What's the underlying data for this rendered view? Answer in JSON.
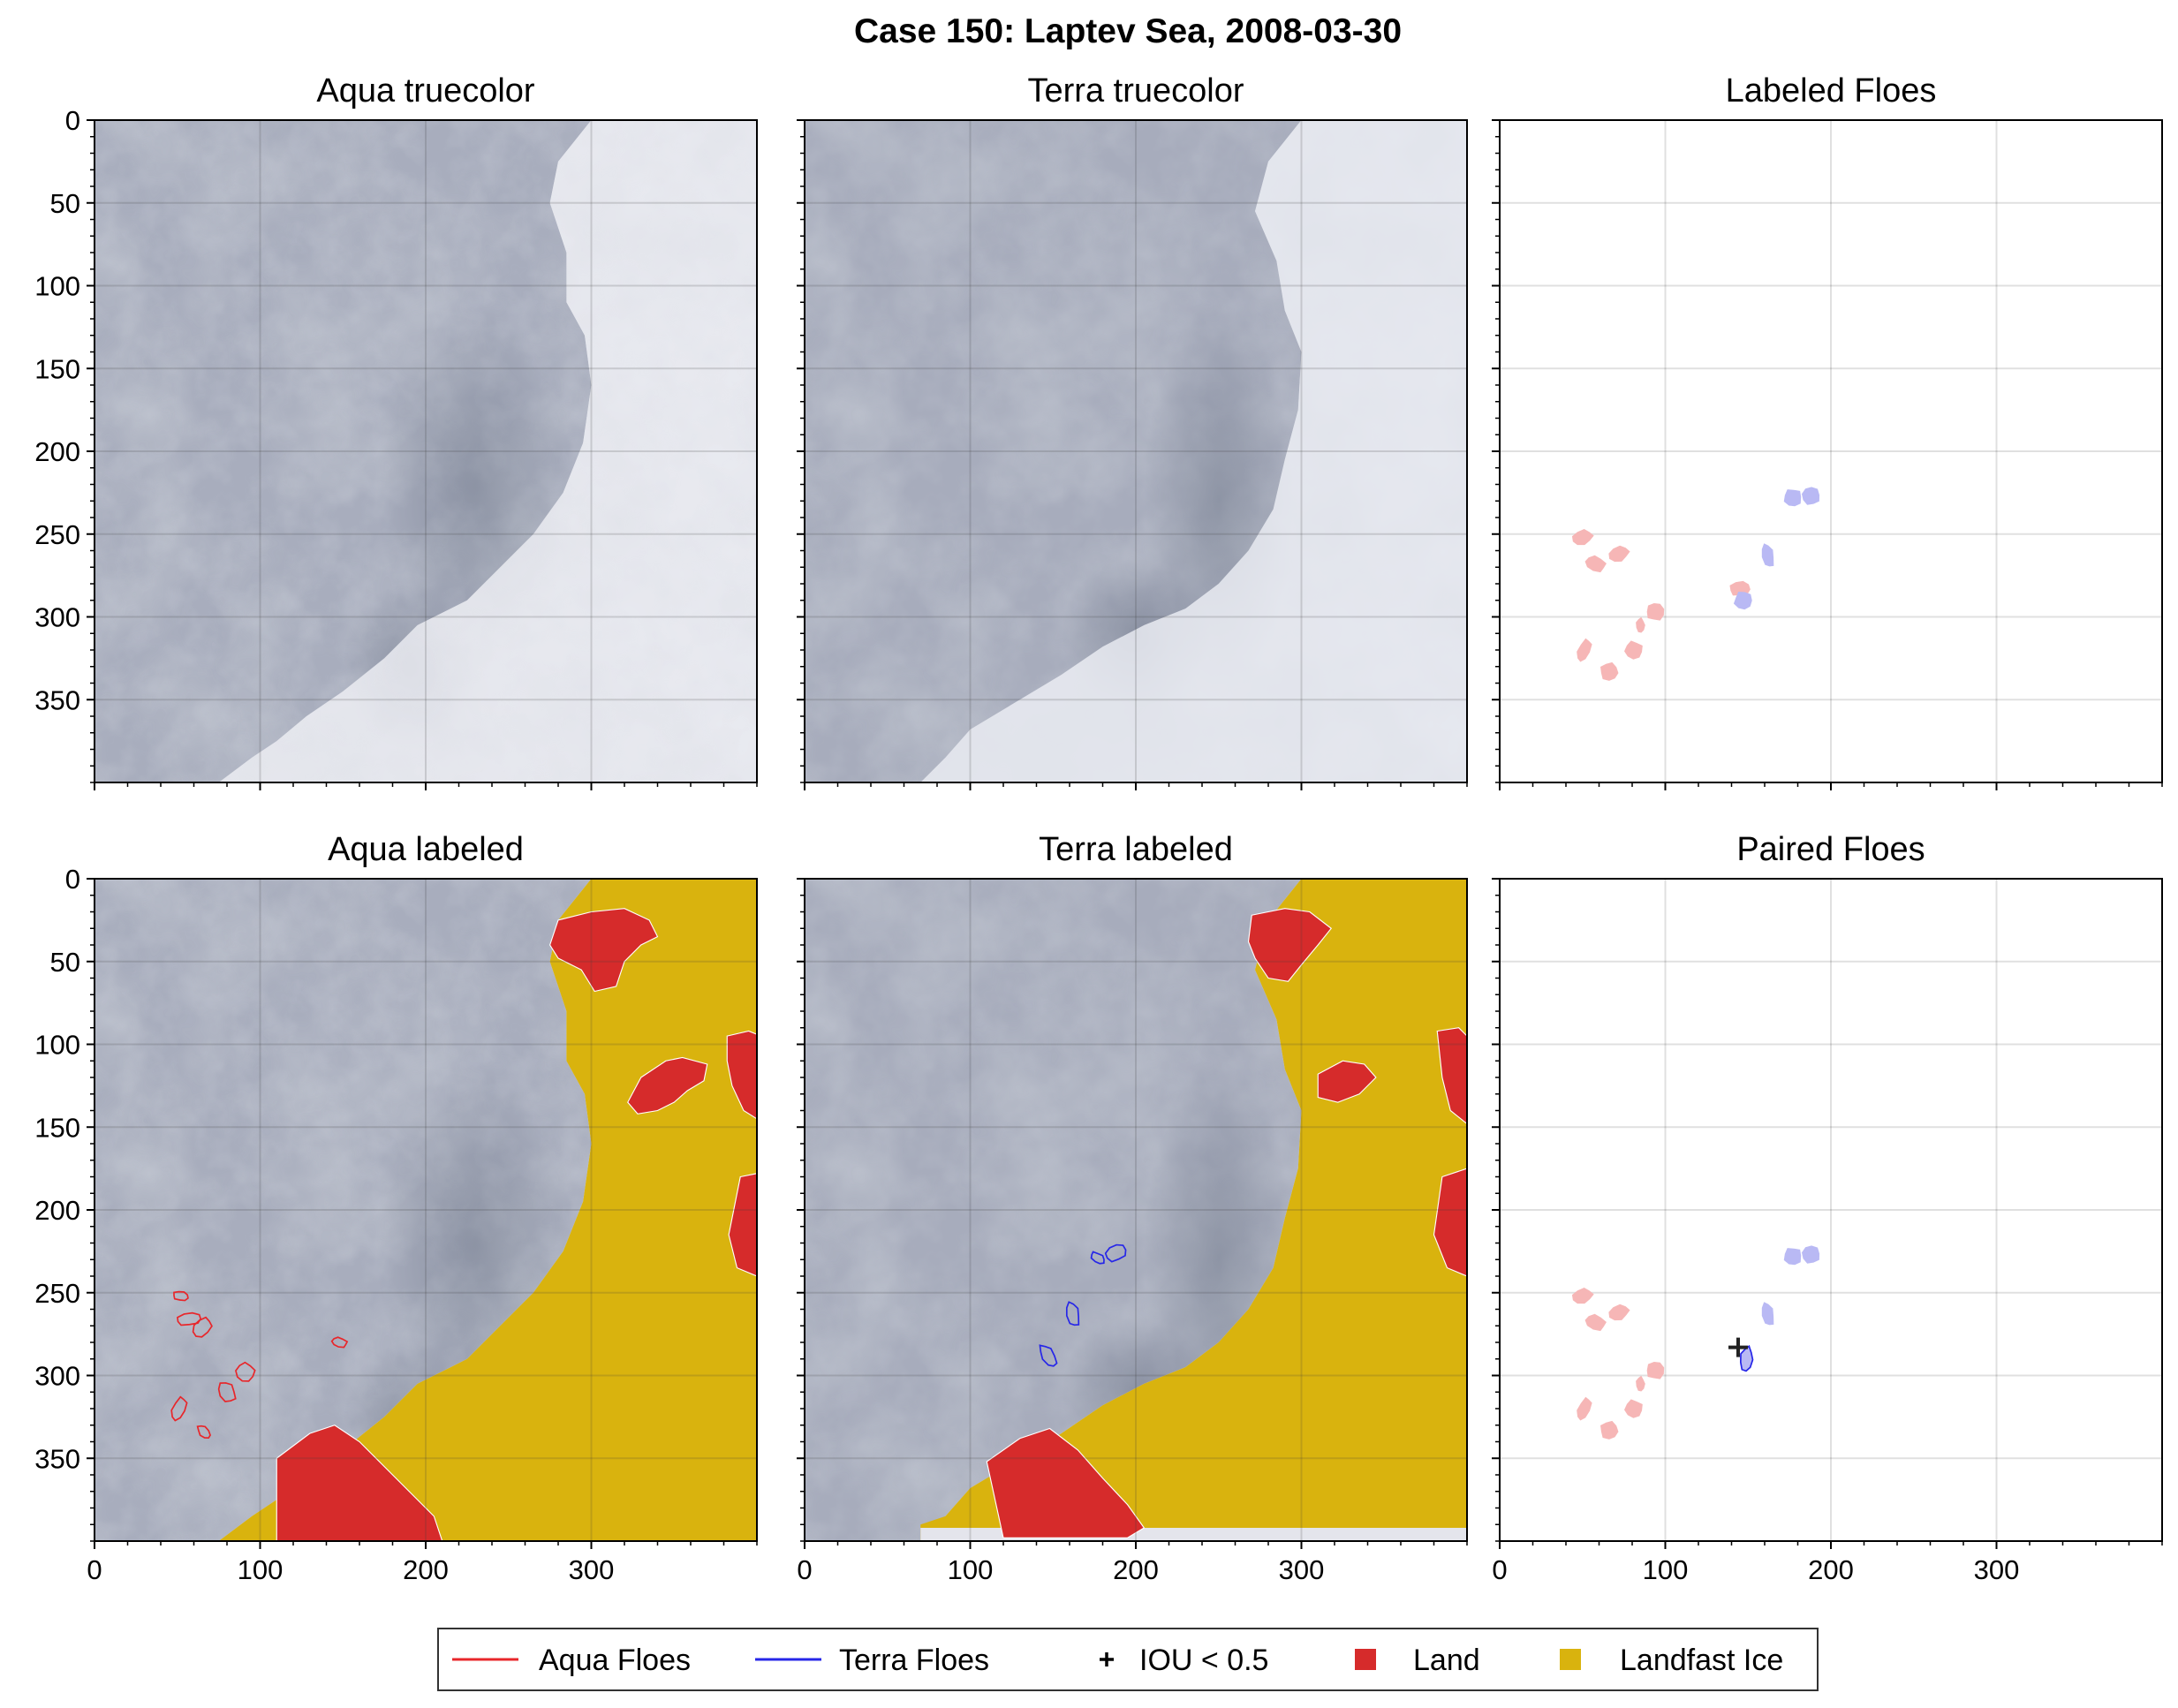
{
  "figure": {
    "title": "Case 150: Laptev Sea, 2008-03-30"
  },
  "colors": {
    "aqua_floes": "#e8262a",
    "terra_floes": "#2626e8",
    "land": "#d62b2b",
    "landfast_ice": "#d9b30e",
    "aqua_fill_light": "#f6b6b6",
    "terra_fill_light": "#b9b9f4",
    "iou_marker": "#222222"
  },
  "chart_data": [
    {
      "type": "image",
      "title": "Aqua truecolor",
      "xlim": [
        0,
        400
      ],
      "ylim": [
        400,
        0
      ],
      "xticks": [
        "0",
        "100",
        "200",
        "300"
      ],
      "yticks": [
        "0",
        "50",
        "100",
        "150",
        "200",
        "250",
        "300",
        "350"
      ],
      "layers": [
        "truecolor"
      ]
    },
    {
      "type": "image",
      "title": "Terra truecolor",
      "xlim": [
        0,
        400
      ],
      "ylim": [
        400,
        0
      ],
      "xticks": [
        "0",
        "100",
        "200",
        "300"
      ],
      "layers": [
        "truecolor"
      ]
    },
    {
      "type": "scatter",
      "title": "Labeled Floes",
      "xlim": [
        0,
        400
      ],
      "ylim": [
        400,
        0
      ],
      "xticks": [
        "0",
        "100",
        "200",
        "300"
      ],
      "aqua_floes": [
        [
          50,
          252
        ],
        [
          58,
          268
        ],
        [
          72,
          262
        ],
        [
          94,
          297
        ],
        [
          85,
          305
        ],
        [
          81,
          320
        ],
        [
          51,
          320
        ],
        [
          66,
          333
        ],
        [
          145,
          283
        ]
      ],
      "terra_floes": [
        [
          177,
          228
        ],
        [
          188,
          227
        ],
        [
          162,
          263
        ],
        [
          147,
          290
        ]
      ]
    },
    {
      "type": "image",
      "title": "Aqua labeled",
      "xlim": [
        0,
        400
      ],
      "ylim": [
        400,
        0
      ],
      "xticks": [
        "0",
        "100",
        "200",
        "300"
      ],
      "yticks": [
        "0",
        "50",
        "100",
        "150",
        "200",
        "250",
        "300",
        "350"
      ],
      "layers": [
        "truecolor",
        "land",
        "landfast_ice",
        "aqua_floe_outlines"
      ],
      "aqua_floes": [
        [
          52,
          252
        ],
        [
          57,
          266
        ],
        [
          65,
          271
        ],
        [
          148,
          280
        ],
        [
          91,
          298
        ],
        [
          80,
          310
        ],
        [
          51,
          320
        ],
        [
          66,
          334
        ]
      ]
    },
    {
      "type": "image",
      "title": "Terra labeled",
      "xlim": [
        0,
        400
      ],
      "ylim": [
        400,
        0
      ],
      "xticks": [
        "0",
        "100",
        "200",
        "300"
      ],
      "layers": [
        "truecolor",
        "land",
        "landfast_ice",
        "terra_floe_outlines"
      ],
      "terra_floes": [
        [
          177,
          229
        ],
        [
          188,
          226
        ],
        [
          162,
          263
        ],
        [
          147,
          288
        ]
      ]
    },
    {
      "type": "scatter",
      "title": "Paired Floes",
      "xlim": [
        0,
        400
      ],
      "ylim": [
        400,
        0
      ],
      "xticks": [
        "0",
        "100",
        "200",
        "300"
      ],
      "aqua_floes": [
        [
          50,
          252
        ],
        [
          58,
          268
        ],
        [
          72,
          262
        ],
        [
          94,
          297
        ],
        [
          85,
          305
        ],
        [
          81,
          320
        ],
        [
          51,
          320
        ],
        [
          66,
          333
        ]
      ],
      "terra_floes": [
        [
          177,
          228
        ],
        [
          188,
          227
        ],
        [
          162,
          263
        ],
        [
          149,
          290
        ]
      ],
      "iou_below_05": [
        [
          144,
          283
        ]
      ]
    }
  ],
  "legend": {
    "placement": "bottom",
    "entries": [
      "Aqua Floes",
      "Terra Floes",
      "IOU < 0.5",
      "Land",
      "Landfast Ice"
    ]
  }
}
